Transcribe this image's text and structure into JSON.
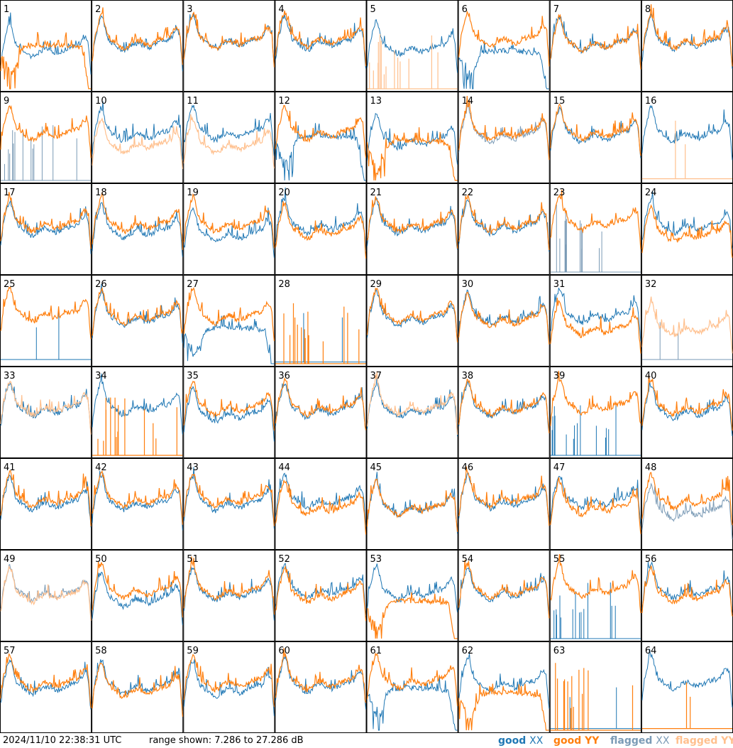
{
  "timestamp": "2024/11/10 22:38:31 UTC",
  "range_text": "range shown: 7.286 to 27.286 dB",
  "legend": [
    {
      "key": "good_xx",
      "prefix": "good",
      "pol": "XX",
      "color": "#1f77b4"
    },
    {
      "key": "good_yy",
      "prefix": "good",
      "pol": "YY",
      "color": "#ff7f0e"
    },
    {
      "key": "flagged_xx",
      "prefix": "flagged",
      "pol": "XX",
      "color": "#7b9bb6"
    },
    {
      "key": "flagged_yy",
      "prefix": "flagged",
      "pol": "YY",
      "color": "#ffc08e"
    }
  ],
  "chart_data": {
    "type": "line",
    "layout": "small-multiples 8x8",
    "ylim": [
      7.286,
      27.286
    ],
    "y_unit": "dB",
    "x_axis": "frequency channel (unlabeled)",
    "panels": [
      {
        "id": "1",
        "xx": "good",
        "yy": "good",
        "xx_profile": "normal",
        "yy_profile": "dip",
        "xx_level": 0.5,
        "yy_level": 0.47
      },
      {
        "id": "2",
        "xx": "good",
        "yy": "good",
        "xx_profile": "normal",
        "yy_profile": "normal",
        "xx_level": 0.57,
        "yy_level": 0.6
      },
      {
        "id": "3",
        "xx": "good",
        "yy": "good",
        "xx_profile": "normal",
        "yy_profile": "normal",
        "xx_level": 0.6,
        "yy_level": 0.6
      },
      {
        "id": "4",
        "xx": "good",
        "yy": "good",
        "xx_profile": "normal",
        "yy_profile": "normal",
        "xx_level": 0.58,
        "yy_level": 0.62
      },
      {
        "id": "5",
        "xx": "good",
        "yy": "flagged",
        "xx_profile": "normal",
        "yy_profile": "spikes",
        "xx_level": 0.52,
        "yy_level": 0.12
      },
      {
        "id": "6",
        "xx": "good",
        "yy": "good",
        "xx_profile": "dip",
        "yy_profile": "normal",
        "xx_level": 0.4,
        "yy_level": 0.62
      },
      {
        "id": "7",
        "xx": "good",
        "yy": "good",
        "xx_profile": "normal",
        "yy_profile": "normal",
        "xx_level": 0.57,
        "yy_level": 0.57
      },
      {
        "id": "8",
        "xx": "good",
        "yy": "good",
        "xx_profile": "normal",
        "yy_profile": "normal",
        "xx_level": 0.58,
        "yy_level": 0.6
      },
      {
        "id": "9",
        "xx": "flagged",
        "yy": "good",
        "xx_profile": "spikes",
        "yy_profile": "normal",
        "xx_level": 0.12,
        "yy_level": 0.6
      },
      {
        "id": "10",
        "xx": "good",
        "yy": "flagged",
        "xx_profile": "normal",
        "yy_profile": "normal",
        "xx_level": 0.58,
        "yy_level": 0.45
      },
      {
        "id": "11",
        "xx": "good",
        "yy": "flagged",
        "xx_profile": "normal",
        "yy_profile": "normal",
        "xx_level": 0.6,
        "yy_level": 0.45
      },
      {
        "id": "12",
        "xx": "good",
        "yy": "good",
        "xx_profile": "dip",
        "yy_profile": "normal",
        "xx_level": 0.48,
        "yy_level": 0.6
      },
      {
        "id": "13",
        "xx": "good",
        "yy": "good",
        "xx_profile": "normal",
        "yy_profile": "dip",
        "xx_level": 0.5,
        "yy_level": 0.42
      },
      {
        "id": "14",
        "xx": "flagged",
        "yy": "good",
        "xx_profile": "normal",
        "yy_profile": "normal",
        "xx_level": 0.57,
        "yy_level": 0.6
      },
      {
        "id": "15",
        "xx": "good",
        "yy": "good",
        "xx_profile": "normal",
        "yy_profile": "normal",
        "xx_level": 0.57,
        "yy_level": 0.6
      },
      {
        "id": "16",
        "xx": "good",
        "yy": "flagged",
        "xx_profile": "normal",
        "yy_profile": "flat",
        "xx_level": 0.58,
        "yy_level": 0.02
      },
      {
        "id": "17",
        "xx": "good",
        "yy": "good",
        "xx_profile": "normal",
        "yy_profile": "normal",
        "xx_level": 0.55,
        "yy_level": 0.6
      },
      {
        "id": "18",
        "xx": "good",
        "yy": "good",
        "xx_profile": "normal",
        "yy_profile": "normal",
        "xx_level": 0.52,
        "yy_level": 0.6
      },
      {
        "id": "19",
        "xx": "good",
        "yy": "good",
        "xx_profile": "normal",
        "yy_profile": "normal",
        "xx_level": 0.48,
        "yy_level": 0.6
      },
      {
        "id": "20",
        "xx": "good",
        "yy": "good",
        "xx_profile": "normal",
        "yy_profile": "normal",
        "xx_level": 0.58,
        "yy_level": 0.52
      },
      {
        "id": "21",
        "xx": "good",
        "yy": "good",
        "xx_profile": "normal",
        "yy_profile": "normal",
        "xx_level": 0.57,
        "yy_level": 0.6
      },
      {
        "id": "22",
        "xx": "good",
        "yy": "good",
        "xx_profile": "normal",
        "yy_profile": "normal",
        "xx_level": 0.57,
        "yy_level": 0.6
      },
      {
        "id": "23",
        "xx": "flagged",
        "yy": "good",
        "xx_profile": "spikes",
        "yy_profile": "normal",
        "xx_level": 0.25,
        "yy_level": 0.62
      },
      {
        "id": "24",
        "xx": "good",
        "yy": "good",
        "xx_profile": "normal",
        "yy_profile": "normal",
        "xx_level": 0.58,
        "yy_level": 0.48
      },
      {
        "id": "25",
        "xx": "good",
        "yy": "good",
        "xx_profile": "flat",
        "yy_profile": "normal",
        "xx_level": 0.05,
        "yy_level": 0.62
      },
      {
        "id": "26",
        "xx": "good",
        "yy": "good",
        "xx_profile": "normal",
        "yy_profile": "normal",
        "xx_level": 0.57,
        "yy_level": 0.6
      },
      {
        "id": "27",
        "xx": "good",
        "yy": "good",
        "xx_profile": "dip",
        "yy_profile": "normal",
        "xx_level": 0.38,
        "yy_level": 0.6
      },
      {
        "id": "28",
        "xx": "good",
        "yy": "good",
        "xx_profile": "flat",
        "yy_profile": "spikes",
        "xx_level": 0.02,
        "yy_level": 0.2
      },
      {
        "id": "29",
        "xx": "good",
        "yy": "good",
        "xx_profile": "normal",
        "yy_profile": "normal",
        "xx_level": 0.57,
        "yy_level": 0.6
      },
      {
        "id": "30",
        "xx": "good",
        "yy": "good",
        "xx_profile": "normal",
        "yy_profile": "normal",
        "xx_level": 0.58,
        "yy_level": 0.55
      },
      {
        "id": "31",
        "xx": "good",
        "yy": "good",
        "xx_profile": "normal",
        "yy_profile": "normal",
        "xx_level": 0.6,
        "yy_level": 0.45
      },
      {
        "id": "32",
        "xx": "flagged",
        "yy": "flagged",
        "xx_profile": "flat",
        "yy_profile": "normal",
        "xx_level": 0.05,
        "yy_level": 0.45
      },
      {
        "id": "33",
        "xx": "good",
        "yy": "flagged",
        "xx_profile": "normal",
        "yy_profile": "normal",
        "xx_level": 0.58,
        "yy_level": 0.6
      },
      {
        "id": "34",
        "xx": "good",
        "yy": "good",
        "xx_profile": "normal",
        "yy_profile": "spikes",
        "xx_level": 0.6,
        "yy_level": 0.15
      },
      {
        "id": "35",
        "xx": "good",
        "yy": "good",
        "xx_profile": "normal",
        "yy_profile": "normal",
        "xx_level": 0.52,
        "yy_level": 0.6
      },
      {
        "id": "36",
        "xx": "good",
        "yy": "good",
        "xx_profile": "normal",
        "yy_profile": "normal",
        "xx_level": 0.57,
        "yy_level": 0.6
      },
      {
        "id": "37",
        "xx": "good",
        "yy": "flagged",
        "xx_profile": "normal",
        "yy_profile": "normal",
        "xx_level": 0.57,
        "yy_level": 0.6
      },
      {
        "id": "38",
        "xx": "good",
        "yy": "good",
        "xx_profile": "normal",
        "yy_profile": "normal",
        "xx_level": 0.58,
        "yy_level": 0.6
      },
      {
        "id": "39",
        "xx": "good",
        "yy": "good",
        "xx_profile": "spikes",
        "yy_profile": "normal",
        "xx_level": 0.1,
        "yy_level": 0.62
      },
      {
        "id": "40",
        "xx": "good",
        "yy": "good",
        "xx_profile": "normal",
        "yy_profile": "normal",
        "xx_level": 0.55,
        "yy_level": 0.6
      },
      {
        "id": "41",
        "xx": "good",
        "yy": "good",
        "xx_profile": "normal",
        "yy_profile": "normal",
        "xx_level": 0.55,
        "yy_level": 0.6
      },
      {
        "id": "42",
        "xx": "good",
        "yy": "good",
        "xx_profile": "normal",
        "yy_profile": "normal",
        "xx_level": 0.55,
        "yy_level": 0.6
      },
      {
        "id": "43",
        "xx": "good",
        "yy": "good",
        "xx_profile": "normal",
        "yy_profile": "normal",
        "xx_level": 0.55,
        "yy_level": 0.6
      },
      {
        "id": "44",
        "xx": "good",
        "yy": "good",
        "xx_profile": "normal",
        "yy_profile": "normal",
        "xx_level": 0.58,
        "yy_level": 0.5
      },
      {
        "id": "45",
        "xx": "good",
        "yy": "good",
        "xx_profile": "normal",
        "yy_profile": "normal",
        "xx_level": 0.5,
        "yy_level": 0.5
      },
      {
        "id": "46",
        "xx": "good",
        "yy": "good",
        "xx_profile": "normal",
        "yy_profile": "normal",
        "xx_level": 0.57,
        "yy_level": 0.6
      },
      {
        "id": "47",
        "xx": "good",
        "yy": "good",
        "xx_profile": "normal",
        "yy_profile": "normal",
        "xx_level": 0.58,
        "yy_level": 0.5
      },
      {
        "id": "48",
        "xx": "flagged",
        "yy": "good",
        "xx_profile": "normal",
        "yy_profile": "normal",
        "xx_level": 0.45,
        "yy_level": 0.58
      },
      {
        "id": "49",
        "xx": "flagged",
        "yy": "flagged",
        "xx_profile": "normal",
        "yy_profile": "normal",
        "xx_level": 0.57,
        "yy_level": 0.55
      },
      {
        "id": "50",
        "xx": "good",
        "yy": "good",
        "xx_profile": "normal",
        "yy_profile": "normal",
        "xx_level": 0.5,
        "yy_level": 0.6
      },
      {
        "id": "51",
        "xx": "good",
        "yy": "good",
        "xx_profile": "normal",
        "yy_profile": "normal",
        "xx_level": 0.57,
        "yy_level": 0.6
      },
      {
        "id": "52",
        "xx": "good",
        "yy": "good",
        "xx_profile": "normal",
        "yy_profile": "normal",
        "xx_level": 0.6,
        "yy_level": 0.55
      },
      {
        "id": "53",
        "xx": "good",
        "yy": "good",
        "xx_profile": "normal",
        "yy_profile": "dip",
        "xx_level": 0.58,
        "yy_level": 0.4
      },
      {
        "id": "54",
        "xx": "good",
        "yy": "good",
        "xx_profile": "normal",
        "yy_profile": "normal",
        "xx_level": 0.57,
        "yy_level": 0.6
      },
      {
        "id": "55",
        "xx": "good",
        "yy": "good",
        "xx_profile": "spikes",
        "yy_profile": "normal",
        "xx_level": 0.2,
        "yy_level": 0.62
      },
      {
        "id": "56",
        "xx": "good",
        "yy": "good",
        "xx_profile": "normal",
        "yy_profile": "normal",
        "xx_level": 0.6,
        "yy_level": 0.55
      },
      {
        "id": "57",
        "xx": "good",
        "yy": "good",
        "xx_profile": "normal",
        "yy_profile": "normal",
        "xx_level": 0.55,
        "yy_level": 0.6
      },
      {
        "id": "58",
        "xx": "good",
        "yy": "good",
        "xx_profile": "normal",
        "yy_profile": "normal",
        "xx_level": 0.55,
        "yy_level": 0.52
      },
      {
        "id": "59",
        "xx": "good",
        "yy": "good",
        "xx_profile": "normal",
        "yy_profile": "normal",
        "xx_level": 0.52,
        "yy_level": 0.6
      },
      {
        "id": "60",
        "xx": "good",
        "yy": "good",
        "xx_profile": "normal",
        "yy_profile": "normal",
        "xx_level": 0.57,
        "yy_level": 0.6
      },
      {
        "id": "61",
        "xx": "good",
        "yy": "good",
        "xx_profile": "dip",
        "yy_profile": "normal",
        "xx_level": 0.45,
        "yy_level": 0.62
      },
      {
        "id": "62",
        "xx": "good",
        "yy": "good",
        "xx_profile": "normal",
        "yy_profile": "dip",
        "xx_level": 0.58,
        "yy_level": 0.4
      },
      {
        "id": "63",
        "xx": "good",
        "yy": "good",
        "xx_profile": "flat",
        "yy_profile": "spikes",
        "xx_level": 0.02,
        "yy_level": 0.25
      },
      {
        "id": "64",
        "xx": "good",
        "yy": "good",
        "xx_profile": "normal",
        "yy_profile": "flat",
        "xx_level": 0.6,
        "yy_level": 0.02
      }
    ]
  }
}
